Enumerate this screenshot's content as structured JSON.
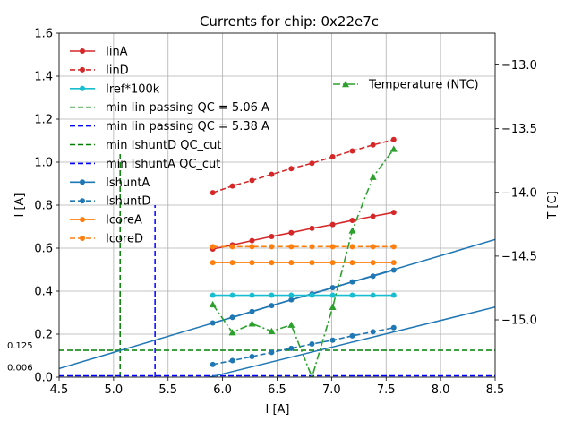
{
  "chart_data": {
    "type": "line",
    "title": "Currents for chip: 0x22e7c",
    "xlabel": "I [A]",
    "ylabel": "I [A]",
    "ylabel_right": "T [C]",
    "xlim": [
      4.5,
      8.5
    ],
    "ylim": [
      0.0,
      1.6
    ],
    "ylim_right": [
      -15.45,
      -12.75
    ],
    "grid": true,
    "xticks": [
      4.5,
      5.0,
      5.5,
      6.0,
      6.5,
      7.0,
      7.5,
      8.0,
      8.5
    ],
    "xtick_labels": [
      "4.5",
      "5.0",
      "5.5",
      "6.0",
      "6.5",
      "7.0",
      "7.5",
      "8.0",
      "8.5"
    ],
    "yticks": [
      0.0,
      0.2,
      0.4,
      0.6,
      0.8,
      1.0,
      1.2,
      1.4,
      1.6
    ],
    "ytick_labels": [
      "0.0",
      "0.2",
      "0.4",
      "0.6",
      "0.8",
      "1.0",
      "1.2",
      "1.4",
      "1.6"
    ],
    "yticks_right": [
      -15.0,
      -14.5,
      -14.0,
      -13.5,
      -13.0
    ],
    "ytick_labels_right": [
      "−15.0",
      "−14.5",
      "−14.0",
      "−13.5",
      "−13.0"
    ],
    "x": [
      5.91,
      6.09,
      6.27,
      6.45,
      6.63,
      6.82,
      7.01,
      7.19,
      7.38,
      7.57
    ],
    "series": [
      {
        "name": "IinA",
        "color": "#d62728",
        "dash": "solid",
        "marker": "circle",
        "values": [
          0.596,
          0.615,
          0.635,
          0.654,
          0.672,
          0.692,
          0.71,
          0.729,
          0.748,
          0.766
        ]
      },
      {
        "name": "IinD",
        "color": "#d62728",
        "dash": "dashed",
        "marker": "circle",
        "values": [
          0.858,
          0.889,
          0.915,
          0.943,
          0.97,
          0.995,
          1.025,
          1.052,
          1.08,
          1.105
        ]
      },
      {
        "name": "Iref*100k",
        "color": "#17becf",
        "dash": "solid",
        "marker": "circle",
        "values": [
          0.381,
          0.381,
          0.381,
          0.381,
          0.381,
          0.381,
          0.381,
          0.381,
          0.381,
          0.381
        ]
      },
      {
        "name": "IcoreA",
        "color": "#ff7f0e",
        "dash": "solid",
        "marker": "circle",
        "values": [
          0.533,
          0.533,
          0.533,
          0.533,
          0.533,
          0.533,
          0.533,
          0.533,
          0.533,
          0.533
        ]
      },
      {
        "name": "IcoreD",
        "color": "#ff7f0e",
        "dash": "dashed",
        "marker": "circle",
        "values": [
          0.607,
          0.607,
          0.607,
          0.607,
          0.607,
          0.607,
          0.607,
          0.607,
          0.607,
          0.607
        ]
      },
      {
        "name": "Temperature (NTC)",
        "color": "#2ca02c",
        "dash": "dashdot",
        "marker": "triangle",
        "axis": "right",
        "values": [
          -14.88,
          -15.1,
          -15.03,
          -15.09,
          -15.04,
          -15.45,
          -14.9,
          -14.3,
          -13.88,
          -13.66
        ]
      }
    ],
    "ishunt_points": [
      {
        "name": "IshuntA",
        "color": "#1f77b4",
        "dash": "solid",
        "values": [
          0.252,
          0.278,
          0.305,
          0.333,
          0.36,
          0.387,
          0.416,
          0.443,
          0.47,
          0.498
        ]
      },
      {
        "name": "IshuntD",
        "color": "#1f77b4",
        "dash": "dashed",
        "values": [
          0.059,
          0.077,
          0.096,
          0.115,
          0.134,
          0.154,
          0.172,
          0.192,
          0.211,
          0.23
        ]
      }
    ],
    "fit_lines": [
      {
        "series": "IshuntA",
        "x": [
          4.5,
          8.5
        ],
        "y": [
          0.04,
          0.64
        ]
      },
      {
        "series": "IshuntD",
        "x": [
          4.5,
          8.5
        ],
        "y": [
          -0.172,
          0.326
        ]
      }
    ],
    "threshold_lines": [
      {
        "name": "min Iin passing QC = 5.06 A",
        "orientation": "vertical",
        "value": 5.06,
        "y_range": [
          0.0,
          1.04
        ],
        "color": "#008000"
      },
      {
        "name": "min Iin passing QC = 5.38 A",
        "orientation": "vertical",
        "value": 5.38,
        "y_range": [
          0.0,
          0.8
        ],
        "color": "#0000ff"
      },
      {
        "name": "min IshuntD QC_cut",
        "orientation": "horizontal",
        "value": 0.125,
        "color": "#008000"
      },
      {
        "name": "min IshuntA QC_cut",
        "orientation": "horizontal",
        "value": 0.006,
        "color": "#0000ff"
      }
    ],
    "annotations": [
      {
        "text": "0.125",
        "value": 0.125
      },
      {
        "text": "0.006",
        "value": 0.006
      }
    ],
    "legend_left": [
      "IinA",
      "IinD",
      "Iref*100k",
      "min Iin passing QC = 5.06 A",
      "min Iin passing QC = 5.38 A",
      "min IshuntD QC_cut",
      "min IshuntA QC_cut",
      "IshuntA",
      "IshuntD",
      "IcoreA",
      "IcoreD"
    ],
    "legend_right": [
      "Temperature (NTC)"
    ],
    "legend_position_left": "upper-left",
    "legend_position_right": "upper-right"
  }
}
